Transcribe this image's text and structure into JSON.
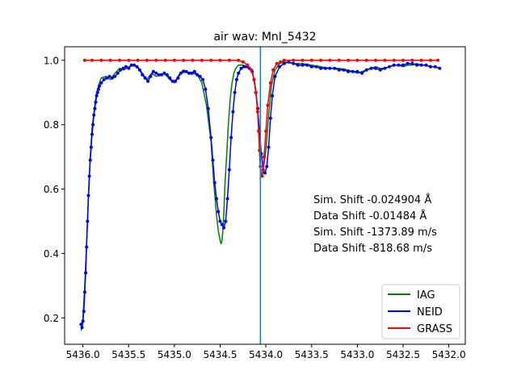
{
  "chart_data": {
    "type": "line",
    "title": "air wav: MnI_5432",
    "xlabel": "",
    "ylabel": "",
    "xlim": [
      5436.2,
      5431.82
    ],
    "ylim": [
      0.118,
      1.042
    ],
    "x_ticks": [
      5436.0,
      5435.5,
      5435.0,
      5434.5,
      5434.0,
      5433.5,
      5433.0,
      5432.5,
      5432.0
    ],
    "x_tick_labels": [
      "5436.0",
      "5435.5",
      "5435.0",
      "5434.5",
      "5434.0",
      "5433.5",
      "5433.0",
      "5432.5",
      "5432.0"
    ],
    "y_ticks": [
      0.2,
      0.4,
      0.6,
      0.8,
      1.0
    ],
    "y_tick_labels": [
      "0.2",
      "0.4",
      "0.6",
      "0.8",
      "1.0"
    ],
    "vertical_line": {
      "x": 5434.06,
      "color": "#1f77b4"
    },
    "annotations": [
      "Sim. Shift -0.024904 Å",
      "Data Shift -0.01484 Å",
      "Sim. Shift -1373.89 m/s",
      "Data Shift -818.68 m/s"
    ],
    "legend": {
      "position": "lower-right",
      "entries": [
        "IAG",
        "NEID",
        "GRASS"
      ]
    },
    "grid": false,
    "series": [
      {
        "name": "IAG",
        "color": "#008000",
        "marker": "none",
        "x": [
          5436.02,
          5436.0,
          5435.98,
          5435.95,
          5435.92,
          5435.9,
          5435.87,
          5435.85,
          5435.82,
          5435.8,
          5435.75,
          5435.7,
          5435.65,
          5435.6,
          5435.55,
          5435.5,
          5435.45,
          5435.4,
          5435.35,
          5435.3,
          5435.25,
          5435.2,
          5435.15,
          5435.12,
          5435.08,
          5435.05,
          5435.0,
          5434.95,
          5434.9,
          5434.85,
          5434.8,
          5434.75,
          5434.7,
          5434.65,
          5434.6,
          5434.57,
          5434.54,
          5434.52,
          5434.5,
          5434.49,
          5434.48,
          5434.47,
          5434.46,
          5434.45,
          5434.43,
          5434.41,
          5434.39,
          5434.37,
          5434.35,
          5434.33,
          5434.3,
          5434.25,
          5434.2,
          5434.15,
          5434.12,
          5434.1,
          5434.08,
          5434.07,
          5434.06,
          5434.05,
          5434.03,
          5434.0,
          5433.97,
          5433.94,
          5433.9,
          5433.85,
          5433.8,
          5433.7,
          5433.6,
          5433.5,
          5433.4,
          5433.3,
          5433.2,
          5433.1,
          5433.05,
          5433.0,
          5432.95,
          5432.9,
          5432.85,
          5432.8,
          5432.75,
          5432.7,
          5432.65,
          5432.6,
          5432.55,
          5432.5,
          5432.45,
          5432.4,
          5432.35,
          5432.3,
          5432.25,
          5432.2,
          5432.15,
          5432.1
        ],
        "y": [
          0.16,
          0.2,
          0.3,
          0.5,
          0.7,
          0.79,
          0.86,
          0.9,
          0.93,
          0.945,
          0.95,
          0.94,
          0.96,
          0.975,
          0.97,
          0.98,
          0.985,
          0.98,
          0.96,
          0.94,
          0.96,
          0.95,
          0.955,
          0.96,
          0.95,
          0.94,
          0.93,
          0.955,
          0.97,
          0.96,
          0.96,
          0.955,
          0.93,
          0.86,
          0.75,
          0.62,
          0.52,
          0.47,
          0.44,
          0.43,
          0.44,
          0.47,
          0.52,
          0.6,
          0.7,
          0.8,
          0.88,
          0.93,
          0.96,
          0.975,
          0.985,
          0.985,
          0.98,
          0.965,
          0.93,
          0.88,
          0.8,
          0.72,
          0.66,
          0.64,
          0.66,
          0.72,
          0.83,
          0.92,
          0.97,
          0.99,
          0.995,
          0.99,
          0.99,
          0.985,
          0.98,
          0.975,
          0.975,
          0.97,
          0.965,
          0.96,
          0.965,
          0.97,
          0.975,
          0.98,
          0.975,
          0.975,
          0.98,
          0.985,
          0.985,
          0.98,
          0.985,
          0.985,
          0.99,
          0.985,
          0.985,
          0.98,
          0.98,
          0.975
        ]
      },
      {
        "name": "NEID",
        "color": "#0000ff",
        "marker": "dot",
        "x": [
          5436.02,
          5436.01,
          5436.0,
          5435.99,
          5435.98,
          5435.97,
          5435.96,
          5435.95,
          5435.94,
          5435.93,
          5435.92,
          5435.91,
          5435.9,
          5435.89,
          5435.88,
          5435.87,
          5435.86,
          5435.85,
          5435.84,
          5435.83,
          5435.82,
          5435.8,
          5435.77,
          5435.74,
          5435.71,
          5435.68,
          5435.65,
          5435.62,
          5435.59,
          5435.56,
          5435.53,
          5435.5,
          5435.47,
          5435.44,
          5435.41,
          5435.38,
          5435.35,
          5435.32,
          5435.29,
          5435.26,
          5435.23,
          5435.2,
          5435.17,
          5435.14,
          5435.11,
          5435.08,
          5435.05,
          5435.02,
          5434.99,
          5434.96,
          5434.93,
          5434.9,
          5434.87,
          5434.84,
          5434.81,
          5434.78,
          5434.75,
          5434.72,
          5434.69,
          5434.66,
          5434.63,
          5434.6,
          5434.58,
          5434.56,
          5434.54,
          5434.52,
          5434.5,
          5434.48,
          5434.46,
          5434.44,
          5434.42,
          5434.4,
          5434.38,
          5434.36,
          5434.34,
          5434.32,
          5434.3,
          5434.27,
          5434.24,
          5434.21,
          5434.18,
          5434.15,
          5434.13,
          5434.11,
          5434.09,
          5434.07,
          5434.05,
          5434.03,
          5434.01,
          5433.99,
          5433.97,
          5433.95,
          5433.93,
          5433.9,
          5433.85,
          5433.8,
          5433.75,
          5433.7,
          5433.65,
          5433.6,
          5433.55,
          5433.5,
          5433.45,
          5433.4,
          5433.35,
          5433.3,
          5433.25,
          5433.2,
          5433.15,
          5433.1,
          5433.05,
          5433.0,
          5432.95,
          5432.9,
          5432.85,
          5432.8,
          5432.75,
          5432.7,
          5432.65,
          5432.6,
          5432.55,
          5432.5,
          5432.45,
          5432.4,
          5432.35,
          5432.3,
          5432.25,
          5432.2,
          5432.15,
          5432.1
        ],
        "y": [
          0.18,
          0.17,
          0.19,
          0.22,
          0.28,
          0.34,
          0.42,
          0.5,
          0.58,
          0.64,
          0.69,
          0.73,
          0.77,
          0.8,
          0.83,
          0.85,
          0.87,
          0.89,
          0.9,
          0.91,
          0.92,
          0.93,
          0.94,
          0.945,
          0.95,
          0.945,
          0.95,
          0.96,
          0.97,
          0.975,
          0.98,
          0.975,
          0.985,
          0.985,
          0.98,
          0.97,
          0.955,
          0.945,
          0.935,
          0.95,
          0.965,
          0.96,
          0.955,
          0.955,
          0.96,
          0.955,
          0.945,
          0.935,
          0.935,
          0.945,
          0.96,
          0.965,
          0.965,
          0.96,
          0.96,
          0.965,
          0.955,
          0.95,
          0.94,
          0.91,
          0.85,
          0.76,
          0.69,
          0.62,
          0.57,
          0.53,
          0.5,
          0.49,
          0.48,
          0.5,
          0.57,
          0.66,
          0.76,
          0.84,
          0.9,
          0.94,
          0.96,
          0.975,
          0.98,
          0.98,
          0.975,
          0.965,
          0.94,
          0.9,
          0.85,
          0.78,
          0.71,
          0.66,
          0.65,
          0.67,
          0.73,
          0.82,
          0.89,
          0.95,
          0.98,
          0.99,
          0.995,
          0.99,
          0.985,
          0.985,
          0.985,
          0.98,
          0.98,
          0.975,
          0.975,
          0.975,
          0.975,
          0.97,
          0.97,
          0.965,
          0.965,
          0.965,
          0.96,
          0.97,
          0.975,
          0.975,
          0.97,
          0.975,
          0.98,
          0.985,
          0.985,
          0.985,
          0.99,
          0.99,
          0.985,
          0.985,
          0.985,
          0.98,
          0.98,
          0.975
        ]
      },
      {
        "name": "GRASS",
        "color": "#ff0000",
        "marker": "dot",
        "x": [
          5435.98,
          5435.9,
          5435.8,
          5435.7,
          5435.6,
          5435.5,
          5435.4,
          5435.3,
          5435.2,
          5435.1,
          5435.0,
          5434.9,
          5434.8,
          5434.7,
          5434.6,
          5434.5,
          5434.4,
          5434.3,
          5434.25,
          5434.2,
          5434.16,
          5434.13,
          5434.11,
          5434.09,
          5434.08,
          5434.07,
          5434.06,
          5434.05,
          5434.04,
          5434.03,
          5434.02,
          5434.0,
          5433.98,
          5433.95,
          5433.92,
          5433.88,
          5433.84,
          5433.8,
          5433.7,
          5433.6,
          5433.5,
          5433.4,
          5433.3,
          5433.2,
          5433.1,
          5433.0,
          5432.9,
          5432.8,
          5432.7,
          5432.6,
          5432.5,
          5432.4,
          5432.3,
          5432.2,
          5432.12
        ],
        "y": [
          1.0,
          1.0,
          1.0,
          1.0,
          1.0,
          1.0,
          1.0,
          1.0,
          1.0,
          1.0,
          1.0,
          1.0,
          1.0,
          1.0,
          1.0,
          1.0,
          1.0,
          1.0,
          0.995,
          0.985,
          0.97,
          0.94,
          0.9,
          0.84,
          0.78,
          0.72,
          0.67,
          0.64,
          0.64,
          0.66,
          0.7,
          0.78,
          0.86,
          0.93,
          0.97,
          0.99,
          0.995,
          1.0,
          1.0,
          1.0,
          1.0,
          1.0,
          1.0,
          1.0,
          1.0,
          1.0,
          1.0,
          1.0,
          1.0,
          1.0,
          1.0,
          1.0,
          1.0,
          1.0,
          1.0
        ]
      }
    ]
  }
}
